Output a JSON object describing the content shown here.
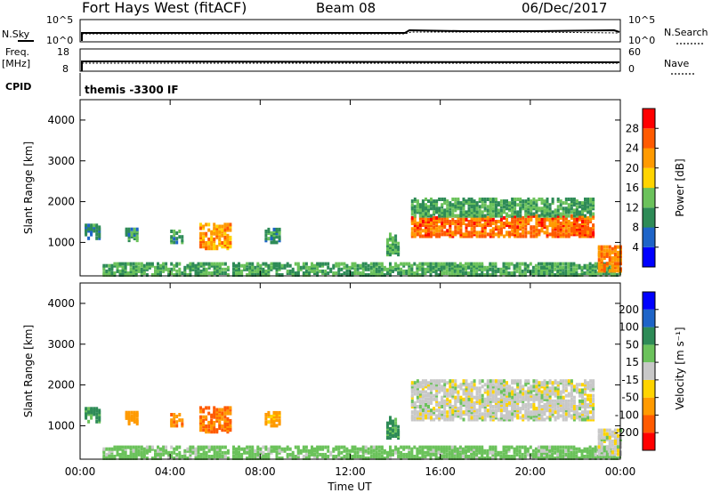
{
  "header": {
    "station": "Fort Hays West (fitACF)",
    "beam": "Beam 08",
    "date": "06/Dec/2017"
  },
  "strips": {
    "nsky_label": "N.Sky",
    "nsky_ticks": [
      "10^5",
      "10^0"
    ],
    "nsearch_label": "N.Search",
    "nsearch_ticks": [
      "10^5",
      "10^0"
    ],
    "freq_label": "Freq.",
    "freq_unit": "[MHz]",
    "freq_ticks": [
      "18",
      "8"
    ],
    "nave_label": "Nave",
    "nave_ticks": [
      "60",
      "0"
    ],
    "cpid_label": "CPID",
    "cpid_value": "themis -3300 IF"
  },
  "axes": {
    "ylabel": "Slant Range [km]",
    "xlabel": "Time UT",
    "yticks": [
      "4000",
      "3000",
      "2000",
      "1000"
    ],
    "xticks": [
      "00:00",
      "04:00",
      "08:00",
      "12:00",
      "16:00",
      "20:00",
      "00:00"
    ]
  },
  "chart_data": [
    {
      "type": "heatmap",
      "name": "power",
      "x_range_hours": [
        0,
        24
      ],
      "y_range_km": [
        180,
        4500
      ],
      "colorbar": {
        "label": "Power [dB]",
        "ticks": [
          "28",
          "24",
          "20",
          "16",
          "12",
          "8",
          "4"
        ],
        "tick_values": [
          28,
          24,
          20,
          16,
          12,
          8,
          4
        ],
        "range": [
          0,
          32
        ],
        "colors": [
          "#0000ff",
          "#1e64c8",
          "#2e8b57",
          "#6bc25b",
          "#ffd400",
          "#ff9a00",
          "#ff5a00",
          "#ff0000"
        ]
      },
      "regions": [
        {
          "t0": 0.2,
          "t1": 0.9,
          "r0": 1100,
          "r1": 1450,
          "level": 9
        },
        {
          "t0": 2.0,
          "t1": 2.6,
          "r0": 1050,
          "r1": 1350,
          "level": 10
        },
        {
          "t0": 4.0,
          "t1": 4.6,
          "r0": 1000,
          "r1": 1300,
          "level": 11
        },
        {
          "t0": 5.3,
          "t1": 6.7,
          "r0": 850,
          "r1": 1450,
          "level": 22
        },
        {
          "t0": 8.2,
          "t1": 8.9,
          "r0": 1000,
          "r1": 1350,
          "level": 11
        },
        {
          "t0": 13.6,
          "t1": 14.1,
          "r0": 700,
          "r1": 1200,
          "level": 12
        },
        {
          "t0": 14.7,
          "t1": 22.8,
          "r0": 1150,
          "r1": 1650,
          "level": 25
        },
        {
          "t0": 14.7,
          "t1": 22.8,
          "r0": 1650,
          "r1": 2100,
          "level": 12
        },
        {
          "t0": 1.0,
          "t1": 24.0,
          "r0": 200,
          "r1": 500,
          "level": 12
        },
        {
          "t0": 23.0,
          "t1": 24.0,
          "r0": 300,
          "r1": 900,
          "level": 24
        }
      ]
    },
    {
      "type": "heatmap",
      "name": "velocity",
      "x_range_hours": [
        0,
        24
      ],
      "y_range_km": [
        180,
        4500
      ],
      "colorbar": {
        "label": "Velocity [m s⁻¹]",
        "ticks": [
          "200",
          "100",
          "50",
          "15",
          "-15",
          "-50",
          "-100",
          "-200"
        ],
        "tick_values": [
          200,
          100,
          50,
          15,
          -15,
          -50,
          -100,
          -200
        ],
        "range": [
          -250,
          250
        ],
        "colors": [
          "#ff0000",
          "#ff5a00",
          "#ff9a00",
          "#ffd400",
          "#c8c8c8",
          "#6bc25b",
          "#2e8b57",
          "#1e64c8",
          "#0000ff"
        ]
      },
      "regions": [
        {
          "t0": 0.2,
          "t1": 0.9,
          "r0": 1100,
          "r1": 1450,
          "value": 60
        },
        {
          "t0": 2.0,
          "t1": 2.6,
          "r0": 1050,
          "r1": 1350,
          "value": -70
        },
        {
          "t0": 4.0,
          "t1": 4.6,
          "r0": 1000,
          "r1": 1300,
          "value": -90
        },
        {
          "t0": 5.3,
          "t1": 6.7,
          "r0": 850,
          "r1": 1450,
          "value": -100
        },
        {
          "t0": 8.2,
          "t1": 8.9,
          "r0": 1000,
          "r1": 1350,
          "value": -60
        },
        {
          "t0": 13.6,
          "t1": 14.1,
          "r0": 700,
          "r1": 1200,
          "value": 60
        },
        {
          "t0": 14.7,
          "t1": 22.8,
          "r0": 1150,
          "r1": 2100,
          "value": 0
        },
        {
          "t0": 1.0,
          "t1": 24.0,
          "r0": 200,
          "r1": 500,
          "value": 30
        },
        {
          "t0": 23.0,
          "t1": 24.0,
          "r0": 300,
          "r1": 900,
          "value": 0
        }
      ]
    }
  ]
}
